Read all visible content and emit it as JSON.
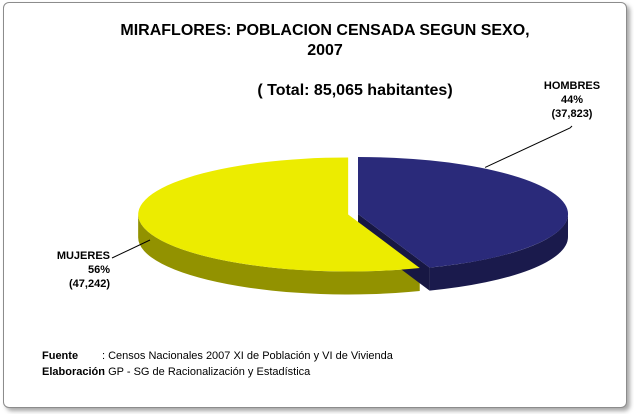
{
  "title_line1": "MIRAFLORES: POBLACION CENSADA SEGUN SEXO,",
  "title_line2": "2007",
  "subtitle": "( Total: 85,065 habitantes)",
  "chart_data": {
    "type": "pie",
    "title": "MIRAFLORES: POBLACION CENSADA SEGUN SEXO, 2007",
    "subtitle": "( Total: 85,065 habitantes)",
    "slices": [
      {
        "label": "HOMBRES",
        "percent": "44%",
        "count": "(37,823)",
        "value": 37823,
        "color": "#2a2a7a"
      },
      {
        "label": "MUJERES",
        "percent": "56%",
        "count": "(47,242)",
        "value": 47242,
        "color": "#ecec00"
      }
    ]
  },
  "footer": {
    "source_label": "Fuente",
    "source_text": ": Censos Nacionales 2007 XI de Población y VI de Vivienda",
    "credit_label": "Elaboración",
    "credit_text": ": GP - SG de Racionalización y Estadística"
  }
}
